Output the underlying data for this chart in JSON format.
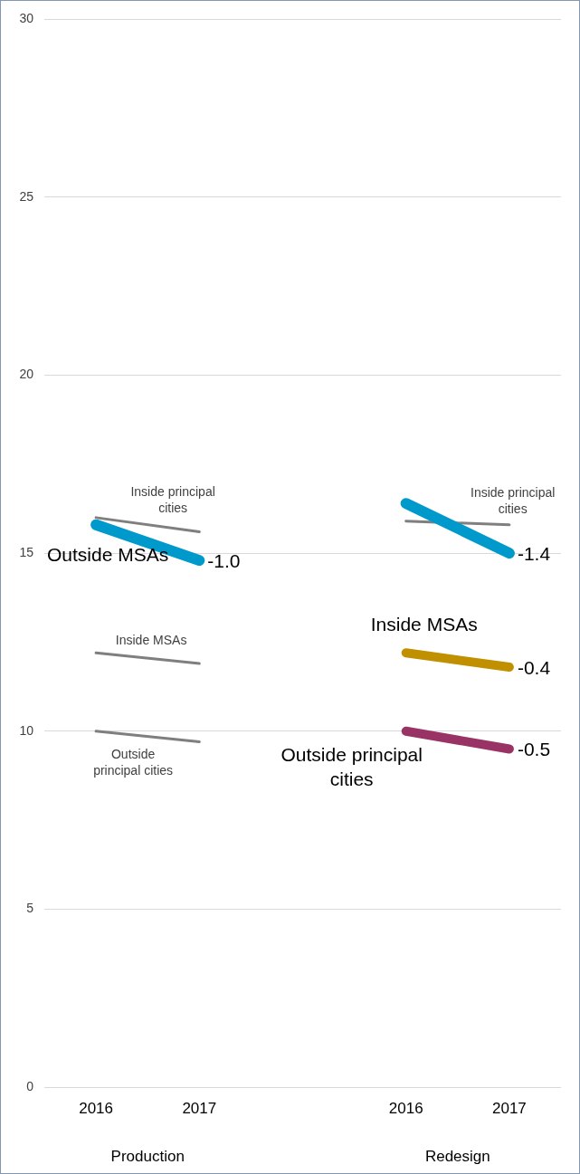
{
  "chart_data": {
    "type": "line",
    "categories": [
      "2016",
      "2017",
      null,
      "2016",
      "2017"
    ],
    "ylim": [
      0,
      30
    ],
    "yticks": [
      0,
      5,
      10,
      15,
      20,
      25,
      30
    ],
    "grid": "y",
    "legend": false,
    "marker": "none",
    "line_style": "solid",
    "series": [
      {
        "name": "Inside principal cities",
        "color": "#7f7f7f",
        "values": [
          16.0,
          15.6,
          null,
          null,
          null
        ]
      },
      {
        "name": "Outside MSAs",
        "color": "#0099cc",
        "values": [
          15.8,
          14.8,
          null,
          null,
          null
        ]
      },
      {
        "name": "Inside MSAs",
        "color": "#7f7f7f",
        "values": [
          12.2,
          11.9,
          null,
          null,
          null
        ]
      },
      {
        "name": "Outside principal cities",
        "color": "#7f7f7f",
        "values": [
          10.0,
          9.7,
          null,
          null,
          null
        ]
      },
      {
        "color": "#0099cc",
        "values": [
          null,
          null,
          null,
          16.4,
          15.0
        ]
      },
      {
        "name": "Inside principal cities",
        "color": "#7f7f7f",
        "values": [
          null,
          null,
          null,
          15.9,
          15.8
        ]
      },
      {
        "name": "Inside MSAs",
        "color": "#c09000",
        "values": [
          null,
          null,
          null,
          12.2,
          11.8
        ]
      },
      {
        "name": "Outside principal cities",
        "color": "#993366",
        "values": [
          null,
          null,
          null,
          10.0,
          9.5
        ]
      }
    ],
    "annotations": [
      "Production",
      "Redesign",
      {
        "text": "-1.0",
        "x": "2017",
        "y": 14.8
      },
      "-1.4",
      "-0.4",
      "-0.5"
    ]
  }
}
